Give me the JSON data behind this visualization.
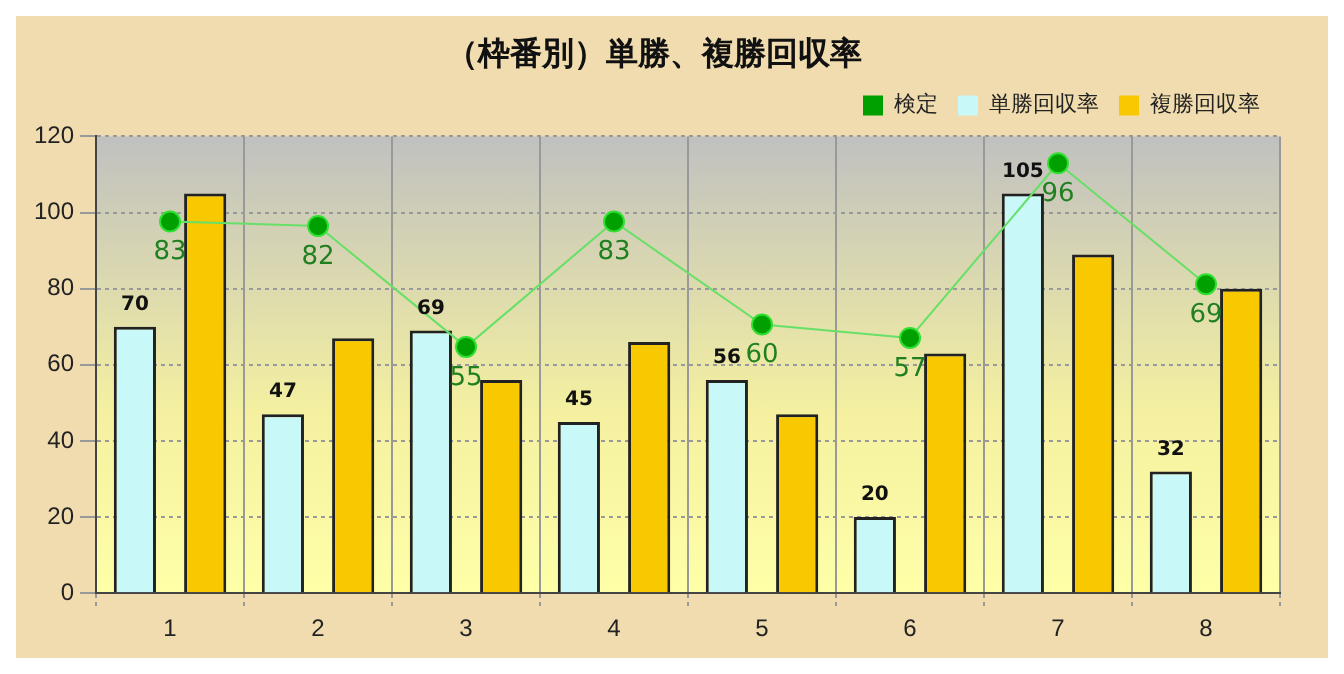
{
  "chart_data": {
    "type": "bar",
    "title": "（枠番別）単勝、複勝回収率",
    "categories": [
      "1",
      "2",
      "3",
      "4",
      "5",
      "6",
      "7",
      "8"
    ],
    "series": [
      {
        "name": "検定",
        "type": "line",
        "axis": "y2",
        "color": "#00a000",
        "marker": "circle",
        "values": [
          83,
          82,
          55,
          83,
          60,
          57,
          96,
          69
        ],
        "value_labels": [
          "83",
          "82",
          "55",
          "83",
          "60",
          "57",
          "96",
          "69"
        ]
      },
      {
        "name": "単勝回収率",
        "color": "#c8f8f8",
        "values": [
          70,
          47,
          69,
          45,
          56,
          20,
          105,
          32
        ],
        "value_labels": [
          "70",
          "47",
          "69",
          "45",
          "56",
          "20",
          "105",
          "32"
        ]
      },
      {
        "name": "複勝回収率",
        "color": "#f8c800",
        "values": [
          105,
          67,
          56,
          66,
          47,
          63,
          89,
          80
        ]
      }
    ],
    "ylim": [
      0,
      120
    ],
    "yticks": [
      0,
      20,
      40,
      60,
      80,
      100,
      120
    ],
    "y2lim": [
      0,
      102
    ],
    "grid": true,
    "legend": "top"
  }
}
